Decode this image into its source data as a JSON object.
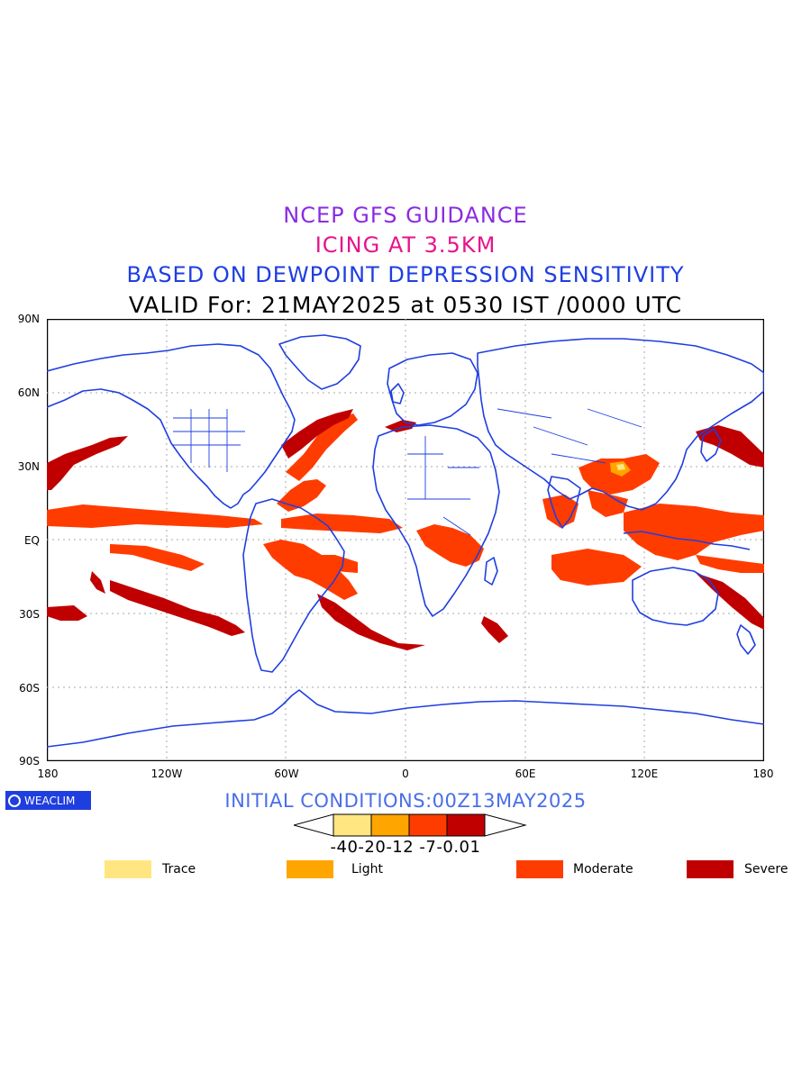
{
  "titles": {
    "line1": "NCEP GFS GUIDANCE",
    "line2": "ICING AT 3.5KM",
    "line3": "BASED ON DEWPOINT DEPRESSION SENSITIVITY",
    "line4": "VALID For: 21MAY2025 at 0530 IST /0000 UTC"
  },
  "title_colors": {
    "line1": "#8a2be2",
    "line2": "#e6148c",
    "line3": "#1f3ee0",
    "line4": "#000000"
  },
  "axes": {
    "y_labels": [
      "90N",
      "60N",
      "30N",
      "EQ",
      "30S",
      "60S",
      "90S"
    ],
    "x_labels": [
      "180",
      "120W",
      "60W",
      "0",
      "60E",
      "120E",
      "180"
    ],
    "lat_range": [
      -90,
      90
    ],
    "lon_range": [
      -180,
      180
    ],
    "grid": "dotted"
  },
  "logo": {
    "text": "WEACLIM",
    "icon": "weaclim-logo-icon",
    "color": "#1f3ee0"
  },
  "initial_conditions": "INITIAL CONDITIONS:00Z13MAY2025",
  "initial_conditions_color": "#4a6ee8",
  "colorbar": {
    "labels": "-40-20-12 -7-0.01",
    "colors": [
      "#ffe680",
      "#ffa500",
      "#ff3c00",
      "#c00000"
    ]
  },
  "legend": [
    {
      "label": "Trace",
      "color": "#ffe680"
    },
    {
      "label": "Light",
      "color": "#ffa500"
    },
    {
      "label": "Moderate",
      "color": "#ff3c00"
    },
    {
      "label": "Severe",
      "color": "#c00000"
    }
  ],
  "map_colors": {
    "coastline": "#1f3ee0",
    "moderate": "#ff3c00",
    "severe": "#c00000"
  }
}
